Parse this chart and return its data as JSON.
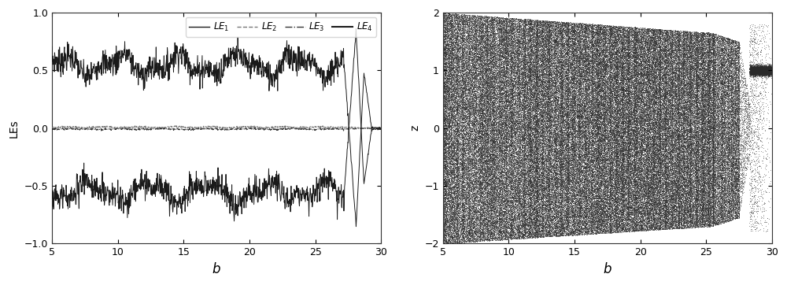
{
  "left_plot": {
    "xlabel": "b",
    "ylabel": "LEs",
    "xlim": [
      5,
      30
    ],
    "ylim": [
      -1,
      1
    ],
    "xticks": [
      5,
      10,
      15,
      20,
      25,
      30
    ],
    "yticks": [
      -1,
      -0.5,
      0,
      0.5,
      1
    ],
    "le1_base": 0.55,
    "le1_noise": 0.06,
    "le4_base": -0.55,
    "transition_start": 27.2,
    "transition_mid1": 28.1,
    "transition_mid2": 28.7,
    "transition_end": 29.3
  },
  "right_plot": {
    "xlabel": "b",
    "ylabel": "z",
    "xlim": [
      5,
      30
    ],
    "ylim": [
      -2,
      2
    ],
    "xticks": [
      5,
      10,
      15,
      20,
      25,
      30
    ],
    "yticks": [
      -2,
      -1,
      0,
      1,
      2
    ],
    "dot_color": "#2a2a2a",
    "dot_size": 0.5
  },
  "background_color": "#ffffff",
  "figsize": [
    10.0,
    3.62
  ],
  "dpi": 100
}
